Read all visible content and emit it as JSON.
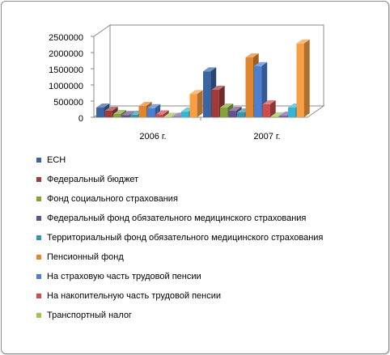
{
  "chart_data": {
    "type": "bar",
    "style": "3d-clustered-column",
    "categories": [
      "2006 г.",
      "2007 г."
    ],
    "y_ticks": [
      "0",
      "500000",
      "1000000",
      "1500000",
      "2000000",
      "2500000"
    ],
    "ylim": [
      0,
      2500000
    ],
    "legend_position": "bottom",
    "grid": false,
    "series": [
      {
        "name": "ЕСН",
        "color": "#3B64A5",
        "values": [
          300000,
          1420000
        ]
      },
      {
        "name": "Федеральный бюджет",
        "color": "#A13A3A",
        "values": [
          200000,
          850000
        ]
      },
      {
        "name": "Фонд социального страхования",
        "color": "#84A23A",
        "values": [
          100000,
          300000
        ]
      },
      {
        "name": "Федеральный фонд обязательного медицинского страхования",
        "color": "#674E8E",
        "values": [
          70000,
          200000
        ]
      },
      {
        "name": "Территориальный фонд обязательного медицинского страхования",
        "color": "#3696AE",
        "values": [
          80000,
          150000
        ]
      },
      {
        "name": "Пенсионный фонд",
        "color": "#E0862F",
        "values": [
          350000,
          1850000
        ]
      },
      {
        "name": "На страховую часть трудовой пенсии",
        "color": "#4A7FD2",
        "values": [
          280000,
          1580000
        ]
      },
      {
        "name": "На накопительную часть трудовой пенсии",
        "color": "#CD4C4C",
        "values": [
          90000,
          400000
        ]
      },
      {
        "name": "Транспортный налог",
        "color": "#9BC452",
        "values": [
          15000,
          30000
        ]
      },
      {
        "name": "",
        "color": "#7E5FAA",
        "values": [
          20000,
          50000
        ]
      },
      {
        "name": "",
        "color": "#34B6D3",
        "values": [
          180000,
          300000
        ]
      },
      {
        "name": "",
        "color": "#F99E43",
        "values": [
          720000,
          2280000
        ]
      }
    ]
  }
}
